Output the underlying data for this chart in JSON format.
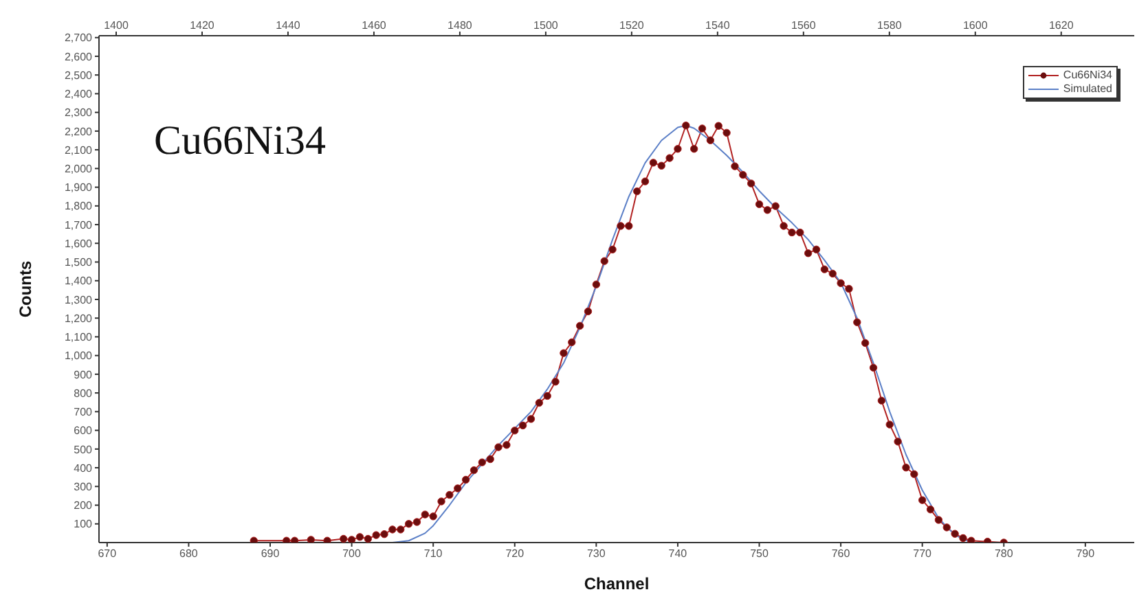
{
  "chart_data": {
    "type": "line",
    "xlabel": "Channel",
    "ylabel": "Counts",
    "annotations": [
      "Cu66Ni34"
    ],
    "xlim": [
      669,
      796
    ],
    "xticks": [
      670,
      680,
      690,
      700,
      710,
      720,
      730,
      740,
      750,
      760,
      770,
      780,
      790
    ],
    "x2lim": [
      1396,
      1637
    ],
    "x2ticks": [
      1400,
      1420,
      1440,
      1460,
      1480,
      1500,
      1520,
      1540,
      1560,
      1580,
      1600,
      1620
    ],
    "ylim": [
      0,
      2710
    ],
    "yticks": [
      100,
      200,
      300,
      400,
      500,
      600,
      700,
      800,
      900,
      {
        "value": 1000,
        "label": "1,000"
      },
      {
        "value": 1100,
        "label": "1,100"
      },
      {
        "value": 1200,
        "label": "1,200"
      },
      {
        "value": 1300,
        "label": "1,300"
      },
      {
        "value": 1400,
        "label": "1,400"
      },
      {
        "value": 1500,
        "label": "1,500"
      },
      {
        "value": 1600,
        "label": "1,600"
      },
      {
        "value": 1700,
        "label": "1,700"
      },
      {
        "value": 1800,
        "label": "1,800"
      },
      {
        "value": 1900,
        "label": "1,900"
      },
      {
        "value": 2000,
        "label": "2,000"
      },
      {
        "value": 2100,
        "label": "2,100"
      },
      {
        "value": 2200,
        "label": "2,200"
      },
      {
        "value": 2300,
        "label": "2,300"
      },
      {
        "value": 2400,
        "label": "2,400"
      },
      {
        "value": 2500,
        "label": "2,500"
      },
      {
        "value": 2600,
        "label": "2,600"
      },
      {
        "value": 2700,
        "label": "2,700"
      }
    ],
    "legend": "top right",
    "line_style": "solid",
    "series": [
      {
        "name": "Cu66Ni34",
        "color": "#b22222",
        "marker": "circle",
        "x": [
          688,
          692,
          693,
          695,
          697,
          699,
          700,
          701,
          702,
          703,
          704,
          705,
          706,
          707,
          708,
          709,
          710,
          711,
          712,
          713,
          714,
          715,
          716,
          717,
          718,
          719,
          720,
          721,
          722,
          723,
          724,
          725,
          726,
          727,
          728,
          729,
          730,
          731,
          732,
          733,
          734,
          735,
          736,
          737,
          738,
          739,
          740,
          741,
          742,
          743,
          744,
          745,
          746,
          747,
          748,
          749,
          750,
          751,
          752,
          753,
          754,
          755,
          756,
          757,
          758,
          759,
          760,
          761,
          762,
          763,
          764,
          765,
          766,
          767,
          768,
          769,
          770,
          771,
          772,
          773,
          774,
          775,
          776,
          778,
          780
        ],
        "values": [
          10,
          10,
          10,
          15,
          10,
          20,
          15,
          30,
          20,
          40,
          45,
          70,
          70,
          100,
          110,
          150,
          140,
          220,
          255,
          290,
          336,
          387,
          429,
          446,
          510,
          522,
          599,
          626,
          661,
          747,
          784,
          860,
          1013,
          1071,
          1159,
          1236,
          1380,
          1505,
          1567,
          1693,
          1693,
          1878,
          1931,
          2031,
          2015,
          2056,
          2105,
          2230,
          2105,
          2214,
          2151,
          2228,
          2191,
          2012,
          1966,
          1920,
          1809,
          1778,
          1799,
          1693,
          1658,
          1658,
          1547,
          1567,
          1461,
          1438,
          1387,
          1357,
          1178,
          1067,
          935,
          759,
          631,
          540,
          401,
          366,
          227,
          177,
          121,
          81,
          47,
          24,
          10,
          5,
          0
        ]
      },
      {
        "name": "Simulated",
        "color": "#5b7fc7",
        "marker": "none",
        "x": [
          705,
          707,
          709,
          710,
          712,
          714,
          716,
          718,
          720,
          722,
          724,
          726,
          728,
          730,
          732,
          734,
          736,
          738,
          740,
          741,
          742,
          744,
          746,
          748,
          750,
          752,
          754,
          756,
          758,
          760,
          762,
          764,
          766,
          768,
          770,
          772,
          774,
          776
        ],
        "values": [
          0,
          10,
          50,
          90,
          200,
          320,
          420,
          520,
          610,
          700,
          820,
          960,
          1150,
          1370,
          1620,
          1850,
          2030,
          2150,
          2220,
          2230,
          2215,
          2150,
          2070,
          1980,
          1880,
          1790,
          1710,
          1620,
          1510,
          1390,
          1200,
          960,
          700,
          470,
          280,
          130,
          40,
          0
        ]
      }
    ]
  }
}
